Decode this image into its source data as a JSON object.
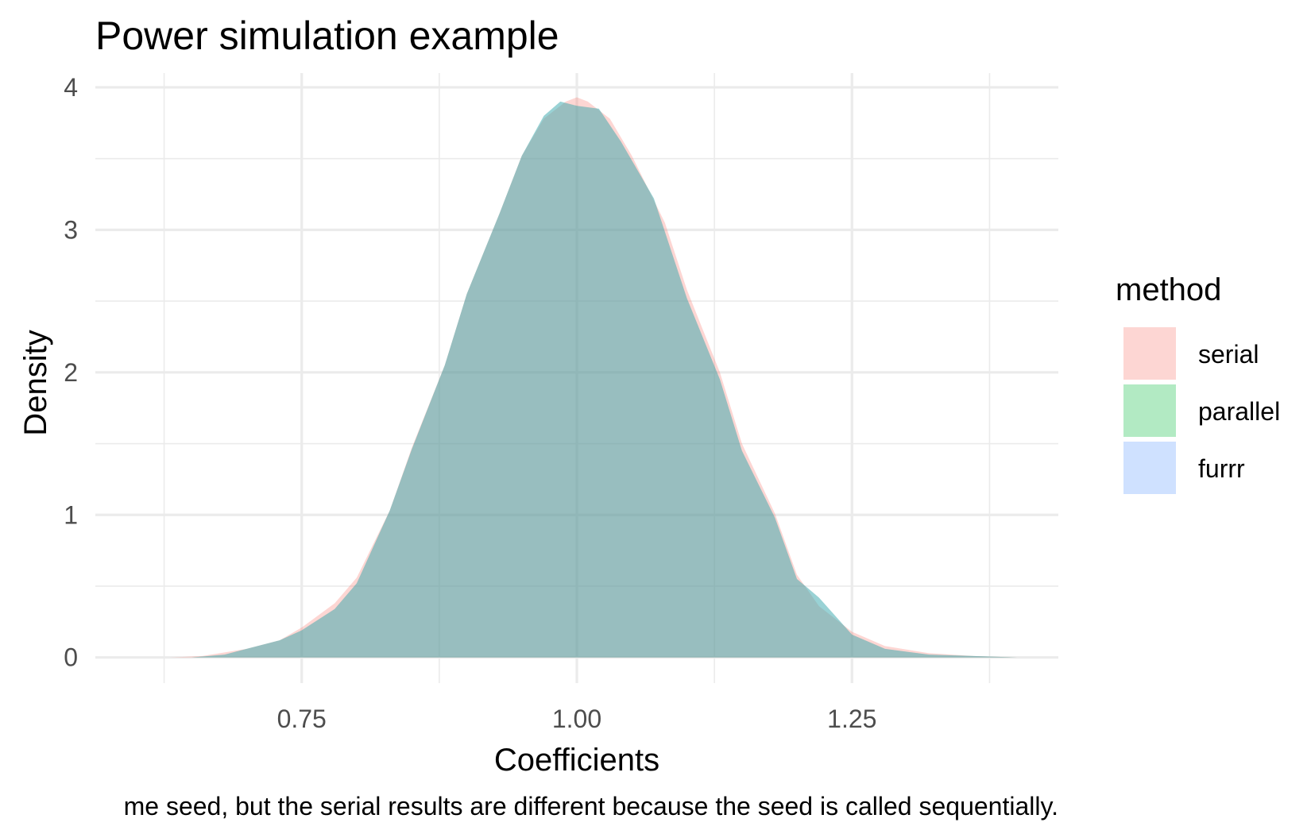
{
  "chart_data": {
    "type": "area",
    "title": "Power simulation example",
    "xlabel": "Coefficients",
    "ylabel": "Density",
    "caption": "me seed, but the serial results are different because the seed is called sequentially.",
    "xlim": [
      0.5625,
      1.4375
    ],
    "ylim": [
      -0.18,
      4.1
    ],
    "x_ticks": [
      0.75,
      1.0,
      1.25
    ],
    "x_tick_labels": [
      "0.75",
      "1.00",
      "1.25"
    ],
    "y_ticks": [
      0,
      1,
      2,
      3,
      4
    ],
    "y_tick_labels": [
      "0",
      "1",
      "2",
      "3",
      "4"
    ],
    "grid": true,
    "legend": {
      "title": "method",
      "position": "right",
      "entries": [
        "serial",
        "parallel",
        "furrr"
      ]
    },
    "colors": {
      "serial": "#F8766D",
      "parallel": "#00BA38",
      "furrr": "#619CFF",
      "overlap": "#9ABDBD",
      "grid": "#EBEBEB"
    },
    "series": [
      {
        "name": "serial",
        "x": [
          0.63,
          0.66,
          0.7,
          0.73,
          0.75,
          0.78,
          0.8,
          0.83,
          0.85,
          0.88,
          0.9,
          0.93,
          0.95,
          0.97,
          0.99,
          1.0,
          1.01,
          1.03,
          1.05,
          1.08,
          1.1,
          1.13,
          1.15,
          1.18,
          1.2,
          1.22,
          1.25,
          1.28,
          1.32,
          1.36,
          1.4,
          1.43
        ],
        "values": [
          0.0,
          0.01,
          0.06,
          0.12,
          0.21,
          0.38,
          0.56,
          1.03,
          1.47,
          2.05,
          2.55,
          3.12,
          3.52,
          3.78,
          3.9,
          3.93,
          3.9,
          3.78,
          3.52,
          3.05,
          2.58,
          2.0,
          1.5,
          1.01,
          0.58,
          0.36,
          0.18,
          0.08,
          0.03,
          0.01,
          0.0,
          0.0
        ]
      },
      {
        "name": "parallel",
        "x": [
          0.65,
          0.68,
          0.7,
          0.73,
          0.75,
          0.78,
          0.8,
          0.83,
          0.85,
          0.88,
          0.9,
          0.93,
          0.95,
          0.97,
          0.985,
          1.0,
          1.02,
          1.04,
          1.07,
          1.1,
          1.13,
          1.15,
          1.18,
          1.2,
          1.22,
          1.25,
          1.28,
          1.32,
          1.36,
          1.4,
          1.43
        ],
        "values": [
          0.0,
          0.02,
          0.06,
          0.12,
          0.19,
          0.34,
          0.52,
          1.03,
          1.46,
          2.05,
          2.55,
          3.12,
          3.52,
          3.8,
          3.9,
          3.87,
          3.85,
          3.62,
          3.22,
          2.52,
          1.95,
          1.45,
          0.98,
          0.55,
          0.42,
          0.16,
          0.06,
          0.02,
          0.01,
          0.0,
          0.0
        ]
      },
      {
        "name": "furrr",
        "x": [
          0.65,
          0.68,
          0.7,
          0.73,
          0.75,
          0.78,
          0.8,
          0.83,
          0.85,
          0.88,
          0.9,
          0.93,
          0.95,
          0.97,
          0.985,
          1.0,
          1.02,
          1.04,
          1.07,
          1.1,
          1.13,
          1.15,
          1.18,
          1.2,
          1.22,
          1.25,
          1.28,
          1.32,
          1.36,
          1.4,
          1.43
        ],
        "values": [
          0.0,
          0.02,
          0.06,
          0.12,
          0.19,
          0.34,
          0.52,
          1.03,
          1.46,
          2.05,
          2.55,
          3.12,
          3.52,
          3.8,
          3.9,
          3.87,
          3.85,
          3.62,
          3.22,
          2.52,
          1.95,
          1.45,
          0.98,
          0.55,
          0.42,
          0.16,
          0.06,
          0.02,
          0.01,
          0.0,
          0.0
        ]
      }
    ]
  }
}
